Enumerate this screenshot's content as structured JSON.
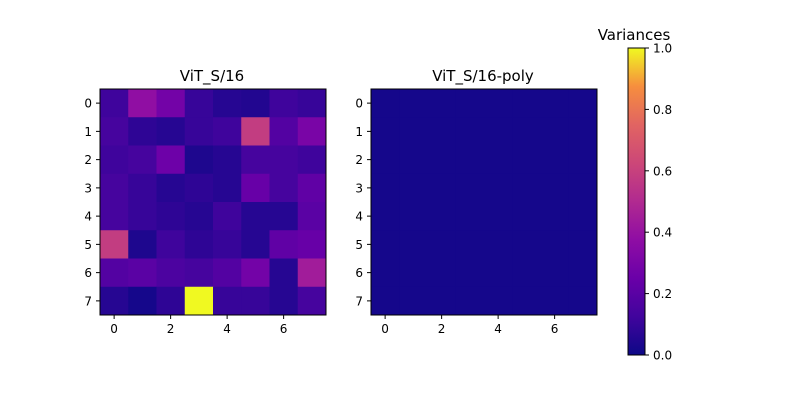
{
  "chart_data": {
    "type": "heatmap",
    "colorbar": {
      "title": "Variances",
      "range": [
        0.0,
        1.0
      ],
      "ticks": [
        0.0,
        0.2,
        0.4,
        0.6,
        0.8,
        1.0
      ],
      "tick_labels": [
        "0.0",
        "0.2",
        "0.4",
        "0.6",
        "0.8",
        "1.0"
      ],
      "colormap": "plasma"
    },
    "panels": [
      {
        "title": "ViT_S/16",
        "x_tick_labels": [
          "0",
          "2",
          "4",
          "6"
        ],
        "x_ticks": [
          0,
          2,
          4,
          6
        ],
        "y_tick_labels": [
          "0",
          "1",
          "2",
          "3",
          "4",
          "5",
          "6",
          "7"
        ],
        "y_ticks": [
          0,
          1,
          2,
          3,
          4,
          5,
          6,
          7
        ],
        "values": [
          [
            0.12,
            0.38,
            0.28,
            0.1,
            0.06,
            0.05,
            0.12,
            0.1
          ],
          [
            0.14,
            0.08,
            0.06,
            0.1,
            0.12,
            0.58,
            0.18,
            0.3
          ],
          [
            0.12,
            0.14,
            0.26,
            0.04,
            0.06,
            0.14,
            0.14,
            0.12
          ],
          [
            0.14,
            0.1,
            0.06,
            0.08,
            0.06,
            0.24,
            0.14,
            0.22
          ],
          [
            0.14,
            0.1,
            0.08,
            0.06,
            0.12,
            0.06,
            0.06,
            0.2
          ],
          [
            0.58,
            0.04,
            0.12,
            0.08,
            0.1,
            0.06,
            0.22,
            0.24
          ],
          [
            0.18,
            0.2,
            0.16,
            0.14,
            0.18,
            0.28,
            0.06,
            0.44
          ],
          [
            0.06,
            0.02,
            0.08,
            1.0,
            0.1,
            0.1,
            0.06,
            0.14
          ]
        ]
      },
      {
        "title": "ViT_S/16-poly",
        "x_tick_labels": [
          "0",
          "2",
          "4",
          "6"
        ],
        "x_ticks": [
          0,
          2,
          4,
          6
        ],
        "y_tick_labels": [
          "0",
          "1",
          "2",
          "3",
          "4",
          "5",
          "6",
          "7"
        ],
        "y_ticks": [
          0,
          1,
          2,
          3,
          4,
          5,
          6,
          7
        ],
        "values": [
          [
            0.02,
            0.02,
            0.02,
            0.02,
            0.02,
            0.02,
            0.02,
            0.02
          ],
          [
            0.02,
            0.02,
            0.02,
            0.02,
            0.02,
            0.02,
            0.02,
            0.02
          ],
          [
            0.02,
            0.02,
            0.02,
            0.02,
            0.02,
            0.02,
            0.02,
            0.02
          ],
          [
            0.02,
            0.02,
            0.02,
            0.02,
            0.02,
            0.02,
            0.02,
            0.02
          ],
          [
            0.02,
            0.02,
            0.02,
            0.02,
            0.02,
            0.02,
            0.02,
            0.02
          ],
          [
            0.02,
            0.02,
            0.02,
            0.02,
            0.02,
            0.02,
            0.02,
            0.02
          ],
          [
            0.02,
            0.02,
            0.02,
            0.02,
            0.02,
            0.02,
            0.02,
            0.02
          ],
          [
            0.02,
            0.02,
            0.02,
            0.02,
            0.02,
            0.02,
            0.02,
            0.02
          ]
        ]
      }
    ]
  }
}
